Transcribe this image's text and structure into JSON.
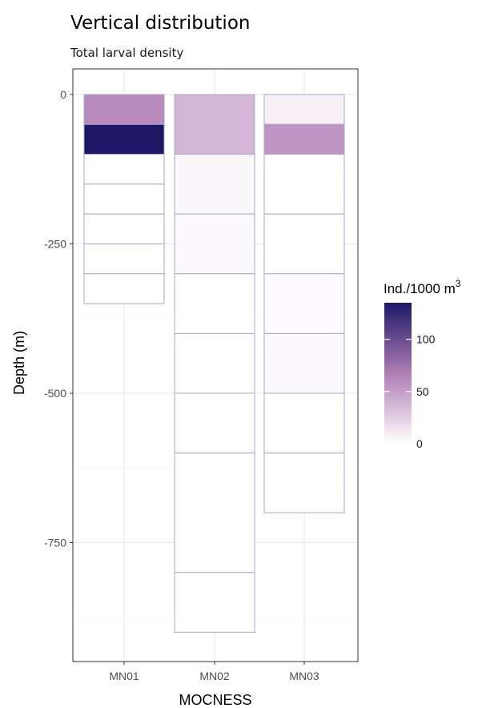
{
  "chart_data": {
    "type": "heatmap",
    "title": "Vertical distribution",
    "subtitle": "Total larval density",
    "xlabel": "MOCNESS",
    "ylabel": "Depth (m)",
    "categories": [
      "MN01",
      "MN02",
      "MN03"
    ],
    "y_ticks": [
      0,
      -250,
      -500,
      -750
    ],
    "y_tick_labels": [
      "0",
      "-250",
      "-500",
      "-750"
    ],
    "ylim": [
      -950,
      0
    ],
    "grid": true,
    "legend": {
      "title": "Ind./1000 m",
      "title_superscript": "3",
      "placement": "right",
      "range": [
        0,
        135
      ],
      "ticks": [
        0,
        50,
        100
      ],
      "tick_labels": [
        "0",
        "50",
        "100"
      ],
      "color_low": "#ffffff",
      "color_mid": "#b07db5",
      "color_high": "#1c1865"
    },
    "series": [
      {
        "category": "MN01",
        "bins": [
          {
            "top": 0,
            "bottom": -50,
            "value": 60
          },
          {
            "top": -50,
            "bottom": -100,
            "value": 135
          },
          {
            "top": -100,
            "bottom": -150,
            "value": 0
          },
          {
            "top": -150,
            "bottom": -200,
            "value": 0
          },
          {
            "top": -200,
            "bottom": -250,
            "value": 0
          },
          {
            "top": -250,
            "bottom": -300,
            "value": 0
          },
          {
            "top": -300,
            "bottom": -350,
            "value": 0
          }
        ]
      },
      {
        "category": "MN02",
        "bins": [
          {
            "top": 0,
            "bottom": -100,
            "value": 38
          },
          {
            "top": -100,
            "bottom": -200,
            "value": 4
          },
          {
            "top": -200,
            "bottom": -300,
            "value": 3
          },
          {
            "top": -300,
            "bottom": -400,
            "value": 0
          },
          {
            "top": -400,
            "bottom": -500,
            "value": 0
          },
          {
            "top": -500,
            "bottom": -600,
            "value": 0
          },
          {
            "top": -600,
            "bottom": -800,
            "value": 0
          },
          {
            "top": -800,
            "bottom": -900,
            "value": 0
          }
        ]
      },
      {
        "category": "MN03",
        "bins": [
          {
            "top": 0,
            "bottom": -50,
            "value": 8
          },
          {
            "top": -50,
            "bottom": -100,
            "value": 55
          },
          {
            "top": -100,
            "bottom": -200,
            "value": 0
          },
          {
            "top": -200,
            "bottom": -300,
            "value": 0
          },
          {
            "top": -300,
            "bottom": -400,
            "value": 2
          },
          {
            "top": -400,
            "bottom": -500,
            "value": 3
          },
          {
            "top": -500,
            "bottom": -600,
            "value": 0
          },
          {
            "top": -600,
            "bottom": -700,
            "value": 0
          }
        ]
      }
    ]
  }
}
